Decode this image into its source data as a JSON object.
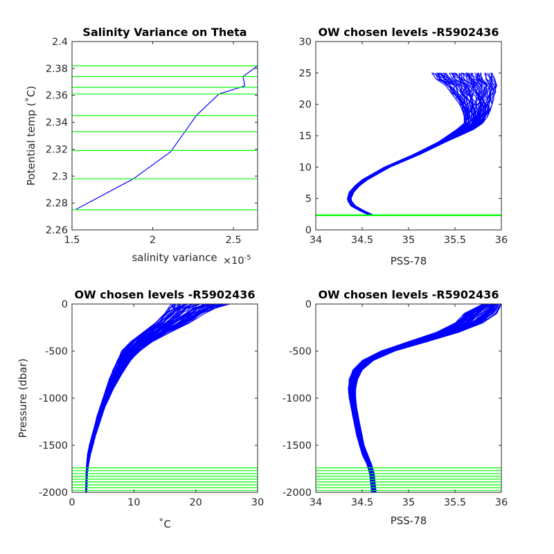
{
  "colors": {
    "profile": "#0000ff",
    "levels": "#00ff00",
    "axes": "#262626",
    "background": "#ffffff"
  },
  "chart_data": [
    {
      "type": "line",
      "title": "Salinity Variance on Theta",
      "xlabel": "salinity variance",
      "x_exponent_label": "×10",
      "x_exponent_power": "-5",
      "ylabel": "Potential temp (˚C)",
      "xlim": [
        1.5,
        2.65
      ],
      "ylim": [
        2.26,
        2.4
      ],
      "xticks": [
        1.5,
        2,
        2.5
      ],
      "yticks": [
        2.26,
        2.28,
        2.3,
        2.32,
        2.34,
        2.36,
        2.38,
        2.4
      ],
      "xtick_labels": [
        "1.5",
        "2",
        "2.5"
      ],
      "ytick_labels": [
        "2.26",
        "2.28",
        "2.3",
        "2.32",
        "2.34",
        "2.36",
        "2.38",
        "2.4"
      ],
      "series": [
        {
          "x": [
            1.52,
            1.88,
            2.11,
            2.2,
            2.27,
            2.41,
            2.57,
            2.56,
            2.65
          ],
          "y": [
            2.275,
            2.298,
            2.318,
            2.333,
            2.345,
            2.361,
            2.367,
            2.374,
            2.382
          ]
        }
      ],
      "chosen_levels": [
        2.275,
        2.298,
        2.319,
        2.333,
        2.345,
        2.361,
        2.366,
        2.374,
        2.382
      ],
      "grid": false
    },
    {
      "type": "line",
      "title": "OW chosen levels -R5902436",
      "xlabel": "PSS-78",
      "ylabel": "",
      "xlim": [
        34,
        36
      ],
      "ylim": [
        0,
        30
      ],
      "xticks": [
        34,
        34.5,
        35,
        35.5,
        36
      ],
      "yticks": [
        0,
        5,
        10,
        15,
        20,
        25,
        30
      ],
      "xtick_labels": [
        "34",
        "34.5",
        "35",
        "35.5",
        "36"
      ],
      "ytick_labels": [
        "0",
        "5",
        "10",
        "15",
        "20",
        "25",
        "30"
      ],
      "profile_envelope": {
        "y": [
          2.3,
          3,
          3.8,
          4.5,
          5,
          6,
          7,
          8,
          10,
          12,
          14,
          15,
          16,
          17,
          18,
          19,
          20,
          21,
          22,
          23,
          24,
          25
        ],
        "x_low": [
          34.58,
          34.48,
          34.38,
          34.35,
          34.34,
          34.36,
          34.42,
          34.5,
          34.74,
          35.05,
          35.32,
          35.42,
          35.52,
          35.6,
          35.6,
          35.58,
          35.55,
          35.5,
          35.45,
          35.4,
          35.3,
          35.25
        ],
        "x_high": [
          34.63,
          34.53,
          34.43,
          34.39,
          34.38,
          34.41,
          34.47,
          34.56,
          34.8,
          35.12,
          35.4,
          35.55,
          35.7,
          35.8,
          35.85,
          35.88,
          35.9,
          35.92,
          35.94,
          35.95,
          35.93,
          35.9
        ]
      },
      "chosen_levels": [
        2.275,
        2.298,
        2.319,
        2.333,
        2.345,
        2.361,
        2.366,
        2.374,
        2.382
      ],
      "grid": false
    },
    {
      "type": "line",
      "title": "OW chosen levels -R5902436",
      "xlabel": "˚C",
      "ylabel": "Pressure (dbar)",
      "xlim": [
        0,
        30
      ],
      "ylim": [
        -2000,
        0
      ],
      "xticks": [
        0,
        10,
        20,
        30
      ],
      "yticks": [
        -2000,
        -1500,
        -1000,
        -500,
        0
      ],
      "xtick_labels": [
        "0",
        "10",
        "20",
        "30"
      ],
      "ytick_labels": [
        "-2000",
        "-1500",
        "-1000",
        "-500",
        "0"
      ],
      "profile_envelope": {
        "y": [
          -2000,
          -1800,
          -1700,
          -1600,
          -1500,
          -1400,
          -1300,
          -1200,
          -1100,
          -1000,
          -900,
          -800,
          -700,
          -600,
          -500,
          -400,
          -300,
          -200,
          -100,
          -50,
          0
        ],
        "x_low": [
          2.2,
          2.25,
          2.35,
          2.5,
          2.8,
          3.2,
          3.6,
          4.0,
          4.5,
          5.0,
          5.5,
          6.0,
          6.6,
          7.3,
          8.0,
          9.5,
          11.5,
          13.5,
          15.0,
          15.5,
          16.0
        ],
        "x_high": [
          2.4,
          2.5,
          2.7,
          3.0,
          3.4,
          3.8,
          4.3,
          4.8,
          5.3,
          6.0,
          6.7,
          7.6,
          8.5,
          9.5,
          11.0,
          13.0,
          16.0,
          19.0,
          21.5,
          23.0,
          25.5
        ]
      },
      "chosen_levels": [
        -1740,
        -1770,
        -1800,
        -1830,
        -1860,
        -1890,
        -1920,
        -1950,
        -1980
      ],
      "grid": false
    },
    {
      "type": "line",
      "title": "OW chosen levels -R5902436",
      "xlabel": "PSS-78",
      "ylabel": "",
      "xlim": [
        34,
        36
      ],
      "ylim": [
        -2000,
        0
      ],
      "xticks": [
        34,
        34.5,
        35,
        35.5,
        36
      ],
      "yticks": [
        -2000,
        -1500,
        -1000,
        -500,
        0
      ],
      "xtick_labels": [
        "34",
        "34.5",
        "35",
        "35.5",
        "36"
      ],
      "ytick_labels": [
        "-2000",
        "-1500",
        "-1000",
        "-500",
        "0"
      ],
      "profile_envelope": {
        "y": [
          -2000,
          -1800,
          -1700,
          -1600,
          -1500,
          -1400,
          -1300,
          -1200,
          -1100,
          -1000,
          -900,
          -800,
          -700,
          -600,
          -500,
          -400,
          -300,
          -200,
          -100,
          0
        ],
        "x_low": [
          34.6,
          34.58,
          34.55,
          34.5,
          34.47,
          34.44,
          34.42,
          34.4,
          34.38,
          34.36,
          34.35,
          34.36,
          34.4,
          34.5,
          34.7,
          35.0,
          35.3,
          35.5,
          35.6,
          35.8
        ],
        "x_high": [
          34.65,
          34.63,
          34.6,
          34.56,
          34.52,
          34.5,
          34.48,
          34.46,
          34.44,
          34.43,
          34.43,
          34.45,
          34.5,
          34.62,
          34.85,
          35.2,
          35.55,
          35.8,
          35.95,
          36.0
        ]
      },
      "chosen_levels": [
        -1740,
        -1770,
        -1800,
        -1830,
        -1860,
        -1890,
        -1920,
        -1950,
        -1980
      ],
      "grid": false
    }
  ]
}
